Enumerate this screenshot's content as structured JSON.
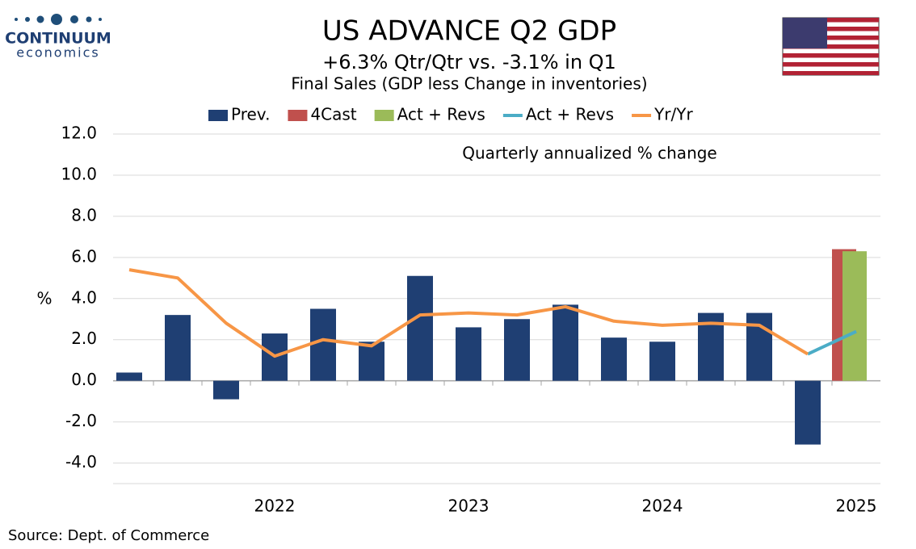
{
  "chart_data": {
    "type": "combo",
    "logo": {
      "name": "CONTINUUM",
      "sub": "economics"
    },
    "title": "US ADVANCE Q2  GDP",
    "subtitle": "+6.3% Qtr/Qtr vs. -3.1% in Q1",
    "subtitle2": "Final Sales (GDP less Change in inventories)",
    "annotation": "Quarterly annualized % change",
    "ylabel": "%",
    "source": "Source: Dept. of Commerce",
    "categories": [
      null,
      null,
      null,
      "2022",
      null,
      null,
      null,
      "2023",
      null,
      null,
      null,
      "2024",
      null,
      null,
      null,
      "2025"
    ],
    "series": [
      {
        "name": "Prev.",
        "type": "bar",
        "color": "#1f3f73",
        "values": [
          0.4,
          3.2,
          -0.9,
          2.3,
          3.5,
          1.9,
          5.1,
          2.6,
          3.0,
          3.7,
          2.1,
          1.9,
          3.3,
          3.3,
          -3.1,
          null
        ]
      },
      {
        "name": "4Cast",
        "type": "bar",
        "color": "#c0504d",
        "values": [
          null,
          null,
          null,
          null,
          null,
          null,
          null,
          null,
          null,
          null,
          null,
          null,
          null,
          null,
          null,
          6.4
        ]
      },
      {
        "name": "Act + Revs",
        "type": "bar",
        "color": "#9bbb59",
        "values": [
          null,
          null,
          null,
          null,
          null,
          null,
          null,
          null,
          null,
          null,
          null,
          null,
          null,
          null,
          null,
          6.3
        ]
      },
      {
        "name": "Act + Revs",
        "type": "line",
        "color": "#4bacc6",
        "values": [
          null,
          null,
          null,
          null,
          null,
          null,
          null,
          null,
          null,
          null,
          null,
          null,
          null,
          null,
          1.3,
          2.4
        ]
      },
      {
        "name": "Yr/Yr",
        "type": "line",
        "color": "#f79646",
        "values": [
          5.4,
          5.0,
          2.8,
          1.2,
          2.0,
          1.7,
          3.2,
          3.3,
          3.2,
          3.6,
          2.9,
          2.7,
          2.8,
          2.7,
          1.3,
          null
        ]
      }
    ],
    "ylim": [
      -5,
      12
    ],
    "yticks": [
      {
        "value": -4,
        "label": "-4.0"
      },
      {
        "value": -2,
        "label": "-2.0"
      },
      {
        "value": 0,
        "label": "0.0"
      },
      {
        "value": 2,
        "label": "2.0"
      },
      {
        "value": 4,
        "label": "4.0"
      },
      {
        "value": 6,
        "label": "6.0"
      },
      {
        "value": 8,
        "label": "8.0"
      },
      {
        "value": 10,
        "label": "10.0"
      },
      {
        "value": 12,
        "label": "12.0"
      }
    ],
    "grid": true
  }
}
